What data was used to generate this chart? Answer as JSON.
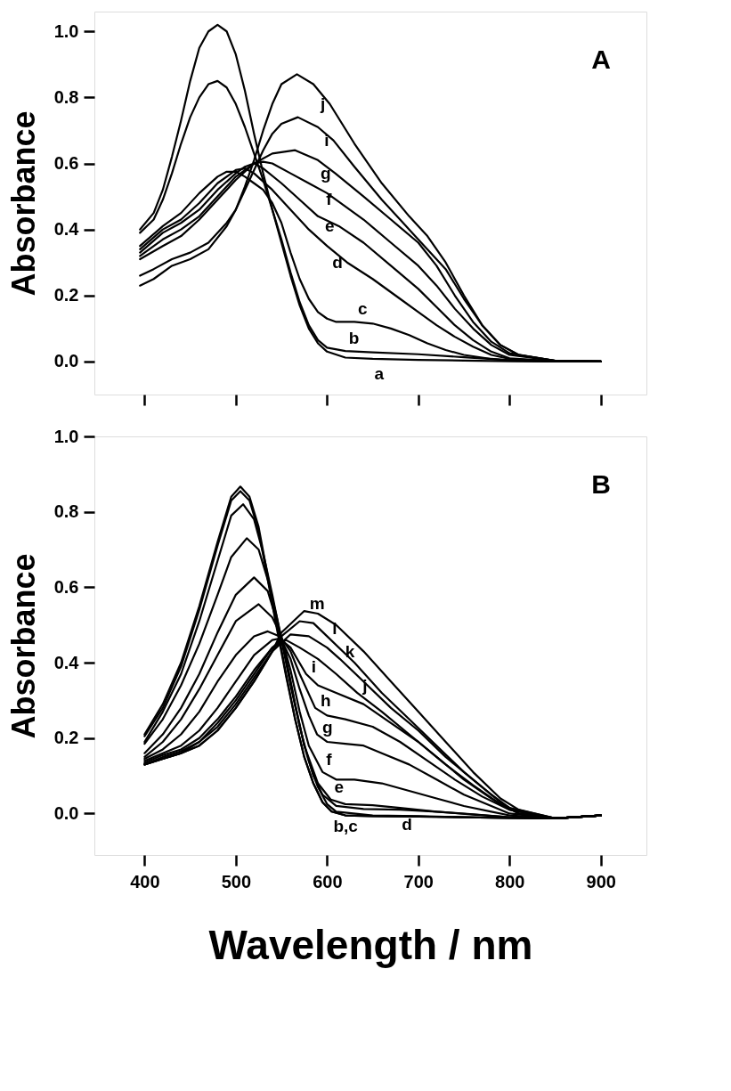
{
  "chart_data": [
    {
      "type": "line",
      "ylabel": "Absorbance",
      "tick_labels": "y",
      "xlim": [
        345,
        950
      ],
      "ylim": [
        -0.1,
        1.06
      ],
      "xticks": [
        400,
        500,
        600,
        700,
        800,
        900
      ],
      "yticks": [
        {
          "value": 0,
          "label": "0.0"
        },
        {
          "value": 0.2,
          "label": "0.2"
        },
        {
          "value": 0.4,
          "label": "0.4"
        },
        {
          "value": 0.6,
          "label": "0.6"
        },
        {
          "value": 0.8,
          "label": "0.8"
        },
        {
          "value": 1,
          "label": "1.0"
        }
      ],
      "series": [
        {
          "color": "#000000",
          "x": [
            395,
            410,
            420,
            430,
            440,
            450,
            460,
            470,
            480,
            490,
            500,
            510,
            520,
            530,
            540,
            550,
            560,
            570,
            580,
            590,
            600,
            620,
            650,
            700,
            750,
            800,
            850,
            900
          ],
          "values": [
            0.4,
            0.45,
            0.52,
            0.62,
            0.73,
            0.85,
            0.95,
            1.0,
            1.02,
            1.0,
            0.93,
            0.82,
            0.69,
            0.57,
            0.46,
            0.36,
            0.26,
            0.17,
            0.1,
            0.055,
            0.03,
            0.012,
            0.008,
            0.005,
            0.003,
            0.001,
            0,
            0
          ]
        },
        {
          "color": "#000000",
          "x": [
            395,
            410,
            420,
            430,
            440,
            450,
            460,
            470,
            480,
            490,
            500,
            510,
            520,
            530,
            540,
            550,
            560,
            570,
            580,
            590,
            600,
            620,
            650,
            700,
            750,
            800,
            850,
            900
          ],
          "values": [
            0.39,
            0.43,
            0.49,
            0.57,
            0.66,
            0.74,
            0.8,
            0.84,
            0.85,
            0.83,
            0.78,
            0.71,
            0.63,
            0.55,
            0.46,
            0.37,
            0.27,
            0.18,
            0.11,
            0.065,
            0.042,
            0.032,
            0.028,
            0.022,
            0.013,
            0.004,
            0.001,
            0
          ]
        },
        {
          "color": "#000000",
          "x": [
            395,
            420,
            440,
            460,
            480,
            490,
            500,
            510,
            520,
            530,
            540,
            550,
            560,
            570,
            580,
            590,
            600,
            610,
            630,
            650,
            670,
            690,
            710,
            730,
            750,
            780,
            800,
            850,
            900
          ],
          "values": [
            0.35,
            0.41,
            0.45,
            0.51,
            0.56,
            0.575,
            0.575,
            0.56,
            0.54,
            0.52,
            0.48,
            0.42,
            0.33,
            0.25,
            0.19,
            0.15,
            0.13,
            0.12,
            0.12,
            0.115,
            0.1,
            0.08,
            0.055,
            0.035,
            0.02,
            0.008,
            0.003,
            0,
            0
          ]
        },
        {
          "color": "#000000",
          "x": [
            395,
            420,
            440,
            460,
            480,
            500,
            510,
            520,
            540,
            560,
            580,
            600,
            622,
            650,
            680,
            700,
            720,
            740,
            760,
            780,
            800,
            850,
            900
          ],
          "values": [
            0.34,
            0.4,
            0.43,
            0.48,
            0.54,
            0.58,
            0.585,
            0.57,
            0.52,
            0.46,
            0.4,
            0.35,
            0.3,
            0.25,
            0.19,
            0.15,
            0.11,
            0.075,
            0.045,
            0.02,
            0.008,
            0,
            0
          ]
        },
        {
          "color": "#000000",
          "x": [
            395,
            420,
            440,
            460,
            480,
            500,
            510,
            520,
            530,
            550,
            570,
            590,
            613,
            640,
            670,
            700,
            720,
            740,
            760,
            780,
            800,
            850,
            900
          ],
          "values": [
            0.33,
            0.39,
            0.42,
            0.46,
            0.52,
            0.57,
            0.59,
            0.6,
            0.585,
            0.54,
            0.49,
            0.44,
            0.41,
            0.36,
            0.29,
            0.22,
            0.165,
            0.11,
            0.065,
            0.03,
            0.01,
            0.001,
            0
          ]
        },
        {
          "color": "#000000",
          "x": [
            395,
            420,
            440,
            460,
            480,
            500,
            520,
            530,
            540,
            560,
            580,
            600,
            610,
            640,
            670,
            700,
            720,
            740,
            760,
            780,
            800,
            850,
            900
          ],
          "values": [
            0.32,
            0.37,
            0.4,
            0.44,
            0.5,
            0.56,
            0.6,
            0.605,
            0.6,
            0.57,
            0.54,
            0.51,
            0.49,
            0.43,
            0.36,
            0.29,
            0.23,
            0.16,
            0.1,
            0.05,
            0.02,
            0.002,
            0
          ]
        },
        {
          "color": "#000000",
          "x": [
            395,
            420,
            440,
            460,
            480,
            500,
            520,
            540,
            565,
            590,
            609,
            640,
            670,
            700,
            720,
            740,
            760,
            780,
            800,
            850,
            900
          ],
          "values": [
            0.31,
            0.35,
            0.38,
            0.43,
            0.49,
            0.55,
            0.6,
            0.63,
            0.64,
            0.61,
            0.57,
            0.5,
            0.43,
            0.36,
            0.29,
            0.2,
            0.12,
            0.06,
            0.025,
            0.002,
            0
          ]
        },
        {
          "color": "#000000",
          "x": [
            395,
            410,
            430,
            450,
            470,
            490,
            500,
            510,
            520,
            530,
            540,
            550,
            568,
            590,
            607,
            630,
            660,
            690,
            710,
            730,
            750,
            770,
            790,
            810,
            850,
            900
          ],
          "values": [
            0.26,
            0.28,
            0.31,
            0.33,
            0.36,
            0.42,
            0.46,
            0.52,
            0.58,
            0.64,
            0.69,
            0.72,
            0.74,
            0.71,
            0.67,
            0.59,
            0.49,
            0.4,
            0.34,
            0.28,
            0.19,
            0.11,
            0.05,
            0.02,
            0.002,
            0
          ]
        },
        {
          "color": "#000000",
          "x": [
            395,
            410,
            430,
            450,
            470,
            490,
            500,
            510,
            520,
            530,
            540,
            550,
            567,
            585,
            603,
            630,
            660,
            690,
            710,
            730,
            750,
            770,
            790,
            810,
            850,
            900
          ],
          "values": [
            0.23,
            0.25,
            0.29,
            0.31,
            0.34,
            0.41,
            0.46,
            0.53,
            0.61,
            0.7,
            0.78,
            0.84,
            0.87,
            0.84,
            0.78,
            0.66,
            0.54,
            0.44,
            0.38,
            0.3,
            0.2,
            0.11,
            0.05,
            0.02,
            0.002,
            0
          ]
        }
      ],
      "annotations": [
        "A",
        {
          "text": "j",
          "x": 603,
          "y": 0.78
        },
        {
          "text": "i",
          "x": 607,
          "y": 0.67
        },
        {
          "text": "g",
          "x": 609,
          "y": 0.57
        },
        {
          "text": "f",
          "x": 610,
          "y": 0.49
        },
        {
          "text": "e",
          "x": 613,
          "y": 0.41
        },
        {
          "text": "d",
          "x": 622,
          "y": 0.3
        },
        {
          "text": "c",
          "x": 630,
          "y": 0.12
        },
        {
          "text": "b",
          "x": 620,
          "y": 0.032
        },
        {
          "text": "a",
          "x": 650,
          "y": 0.008
        }
      ]
    },
    {
      "type": "line",
      "ylabel": "Absorbance",
      "xlabel": "Wavelength / nm",
      "xlim": [
        345,
        950
      ],
      "ylim": [
        -0.11,
        1.0
      ],
      "xticks": [
        400,
        500,
        600,
        700,
        800,
        900
      ],
      "yticks": [
        {
          "value": 0,
          "label": "0.0"
        },
        {
          "value": 0.2,
          "label": "0.2"
        },
        {
          "value": 0.4,
          "label": "0.4"
        },
        {
          "value": 0.6,
          "label": "0.6"
        },
        {
          "value": 0.8,
          "label": "0.8"
        },
        {
          "value": 1,
          "label": "1.0"
        }
      ],
      "series": [
        {
          "color": "#000000",
          "x": [
            400,
            420,
            440,
            460,
            480,
            495,
            505,
            515,
            525,
            535,
            545,
            555,
            565,
            575,
            585,
            595,
            605,
            620,
            650,
            700,
            750,
            800,
            850,
            900
          ],
          "values": [
            0.21,
            0.29,
            0.4,
            0.55,
            0.72,
            0.84,
            0.867,
            0.84,
            0.76,
            0.63,
            0.5,
            0.37,
            0.25,
            0.15,
            0.08,
            0.03,
            0.005,
            -0.005,
            -0.007,
            -0.008,
            -0.01,
            -0.012,
            -0.013,
            -0.005
          ]
        },
        {
          "color": "#000000",
          "x": [
            400,
            420,
            440,
            460,
            480,
            495,
            505,
            515,
            525,
            535,
            545,
            555,
            565,
            575,
            585,
            595,
            605,
            620,
            650,
            700,
            750,
            800,
            850,
            900
          ],
          "values": [
            0.205,
            0.28,
            0.39,
            0.54,
            0.71,
            0.83,
            0.855,
            0.83,
            0.75,
            0.62,
            0.49,
            0.365,
            0.25,
            0.15,
            0.08,
            0.03,
            0.005,
            -0.005,
            -0.007,
            -0.008,
            -0.01,
            -0.012,
            -0.013,
            -0.005
          ]
        },
        {
          "color": "#000000",
          "x": [
            400,
            420,
            440,
            460,
            480,
            495,
            508,
            520,
            530,
            540,
            550,
            560,
            570,
            580,
            590,
            600,
            610,
            650,
            700,
            750,
            800,
            850,
            900
          ],
          "values": [
            0.19,
            0.27,
            0.37,
            0.51,
            0.67,
            0.79,
            0.82,
            0.78,
            0.69,
            0.58,
            0.46,
            0.34,
            0.23,
            0.14,
            0.07,
            0.025,
            0.005,
            -0.005,
            -0.007,
            -0.01,
            -0.012,
            -0.013,
            -0.005
          ]
        },
        {
          "color": "#000000",
          "x": [
            400,
            420,
            440,
            460,
            480,
            495,
            512,
            525,
            535,
            545,
            555,
            565,
            575,
            585,
            595,
            610,
            640,
            680,
            720,
            760,
            800,
            850,
            900
          ],
          "values": [
            0.185,
            0.25,
            0.34,
            0.45,
            0.58,
            0.68,
            0.73,
            0.7,
            0.62,
            0.52,
            0.41,
            0.29,
            0.18,
            0.1,
            0.05,
            0.02,
            0.012,
            0.01,
            0.005,
            -0.003,
            -0.01,
            -0.013,
            -0.005
          ]
        },
        {
          "color": "#000000",
          "x": [
            400,
            420,
            440,
            460,
            480,
            500,
            520,
            535,
            545,
            555,
            565,
            575,
            590,
            604,
            620,
            650,
            680,
            720,
            760,
            800,
            850,
            900
          ],
          "values": [
            0.16,
            0.21,
            0.28,
            0.37,
            0.48,
            0.58,
            0.626,
            0.59,
            0.51,
            0.41,
            0.29,
            0.18,
            0.08,
            0.037,
            0.025,
            0.022,
            0.015,
            0.005,
            -0.002,
            -0.01,
            -0.013,
            -0.005
          ]
        },
        {
          "color": "#000000",
          "x": [
            400,
            420,
            440,
            460,
            480,
            500,
            525,
            540,
            550,
            560,
            570,
            580,
            595,
            610,
            630,
            660,
            690,
            720,
            750,
            780,
            800,
            850,
            900
          ],
          "values": [
            0.15,
            0.19,
            0.25,
            0.33,
            0.42,
            0.51,
            0.555,
            0.52,
            0.47,
            0.38,
            0.27,
            0.18,
            0.11,
            0.09,
            0.09,
            0.08,
            0.06,
            0.04,
            0.02,
            0.005,
            -0.005,
            -0.013,
            -0.005
          ]
        },
        {
          "color": "#000000",
          "x": [
            400,
            420,
            440,
            460,
            480,
            500,
            520,
            535,
            548,
            560,
            570,
            580,
            589,
            600,
            620,
            640,
            660,
            690,
            720,
            750,
            780,
            800,
            850,
            900
          ],
          "values": [
            0.145,
            0.17,
            0.21,
            0.27,
            0.35,
            0.42,
            0.47,
            0.483,
            0.47,
            0.41,
            0.33,
            0.26,
            0.21,
            0.19,
            0.185,
            0.18,
            0.16,
            0.13,
            0.09,
            0.05,
            0.02,
            0.0,
            -0.013,
            -0.005
          ]
        },
        {
          "color": "#000000",
          "x": [
            400,
            420,
            440,
            460,
            480,
            500,
            520,
            540,
            550,
            560,
            570,
            587,
            600,
            620,
            650,
            680,
            710,
            740,
            770,
            800,
            850,
            900
          ],
          "values": [
            0.14,
            0.16,
            0.18,
            0.22,
            0.28,
            0.35,
            0.42,
            0.46,
            0.465,
            0.43,
            0.37,
            0.28,
            0.26,
            0.25,
            0.23,
            0.19,
            0.14,
            0.09,
            0.045,
            0.01,
            -0.013,
            -0.005
          ]
        },
        {
          "color": "#000000",
          "x": [
            400,
            420,
            440,
            460,
            480,
            500,
            520,
            540,
            550,
            560,
            577,
            590,
            610,
            640,
            670,
            700,
            730,
            760,
            790,
            810,
            850,
            900
          ],
          "values": [
            0.135,
            0.155,
            0.17,
            0.2,
            0.25,
            0.31,
            0.38,
            0.44,
            0.46,
            0.44,
            0.37,
            0.34,
            0.32,
            0.29,
            0.24,
            0.19,
            0.13,
            0.075,
            0.025,
            0.0,
            -0.013,
            -0.005
          ]
        },
        {
          "color": "#000000",
          "x": [
            400,
            420,
            440,
            460,
            480,
            500,
            520,
            540,
            555,
            570,
            590,
            610,
            633,
            660,
            690,
            720,
            750,
            780,
            800,
            850,
            900
          ],
          "values": [
            0.13,
            0.15,
            0.165,
            0.19,
            0.24,
            0.3,
            0.37,
            0.44,
            0.46,
            0.44,
            0.41,
            0.37,
            0.32,
            0.27,
            0.21,
            0.15,
            0.09,
            0.04,
            0.01,
            -0.013,
            -0.005
          ]
        },
        {
          "color": "#000000",
          "x": [
            400,
            420,
            440,
            460,
            480,
            500,
            520,
            540,
            560,
            580,
            600,
            614,
            640,
            670,
            700,
            730,
            760,
            790,
            810,
            850,
            900
          ],
          "values": [
            0.13,
            0.145,
            0.16,
            0.19,
            0.23,
            0.29,
            0.36,
            0.43,
            0.475,
            0.47,
            0.44,
            0.41,
            0.35,
            0.28,
            0.22,
            0.15,
            0.09,
            0.03,
            0.0,
            -0.013,
            -0.005
          ]
        },
        {
          "color": "#000000",
          "x": [
            400,
            420,
            440,
            460,
            480,
            500,
            520,
            540,
            550,
            570,
            585,
            600,
            630,
            660,
            690,
            720,
            750,
            780,
            800,
            850,
            900
          ],
          "values": [
            0.13,
            0.145,
            0.16,
            0.18,
            0.22,
            0.28,
            0.35,
            0.43,
            0.47,
            0.51,
            0.505,
            0.47,
            0.4,
            0.32,
            0.25,
            0.18,
            0.11,
            0.05,
            0.015,
            -0.013,
            -0.005
          ]
        },
        {
          "color": "#000000",
          "x": [
            400,
            420,
            440,
            460,
            480,
            500,
            520,
            540,
            550,
            575,
            590,
            610,
            640,
            670,
            700,
            730,
            760,
            790,
            810,
            850,
            900
          ],
          "values": [
            0.13,
            0.145,
            0.16,
            0.18,
            0.22,
            0.28,
            0.35,
            0.43,
            0.48,
            0.537,
            0.53,
            0.5,
            0.43,
            0.35,
            0.27,
            0.19,
            0.11,
            0.04,
            0.01,
            -0.013,
            -0.005
          ]
        }
      ],
      "annotations": [
        "B",
        {
          "text": "m",
          "x": 575,
          "y": 0.537
        },
        {
          "text": "l",
          "x": 600,
          "y": 0.47
        },
        {
          "text": "k",
          "x": 614,
          "y": 0.41
        },
        {
          "text": "j",
          "x": 633,
          "y": 0.32
        },
        {
          "text": "i",
          "x": 577,
          "y": 0.37
        },
        {
          "text": "h",
          "x": 587,
          "y": 0.28
        },
        {
          "text": "g",
          "x": 589,
          "y": 0.21
        },
        {
          "text": "f",
          "x": 595,
          "y": 0.11
        },
        {
          "text": "e",
          "x": 604,
          "y": 0.037
        },
        {
          "text": "d",
          "x": 680,
          "y": 0.01
        },
        {
          "text": "b,c",
          "x": 605,
          "y": 0.005
        }
      ]
    }
  ]
}
